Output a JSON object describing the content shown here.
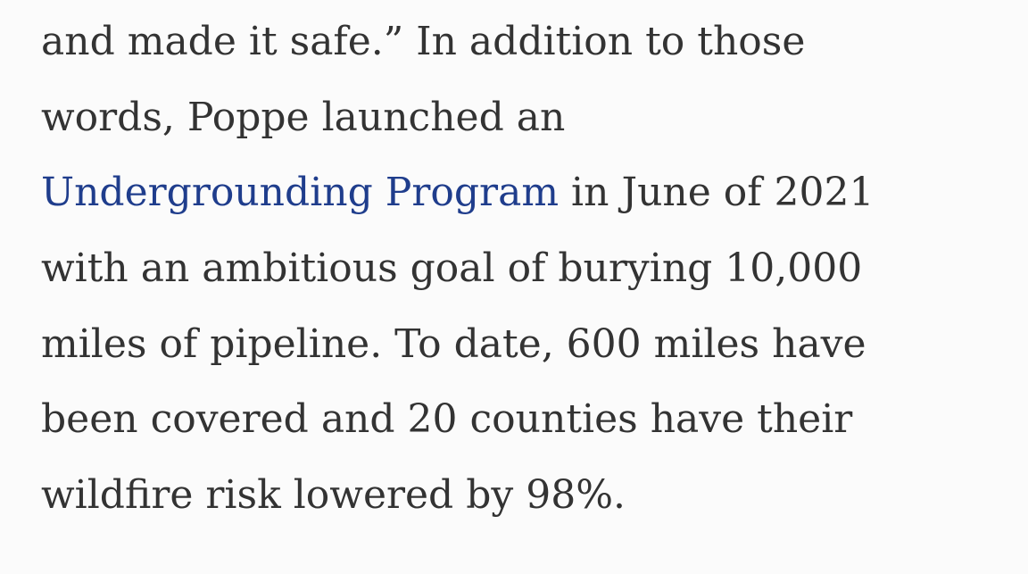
{
  "paragraph": {
    "lines": [
      "and made it safe.” In addition to those",
      "words, Poppe launched an",
      {
        "link": "Undergrounding Program",
        "text": "in June of 2021"
      },
      "with an ambitious goal of burying 10,000",
      "miles of pipeline. To date, 600 miles have",
      "been covered and 20 counties have their",
      "wildfire risk lowered by 98%."
    ]
  }
}
